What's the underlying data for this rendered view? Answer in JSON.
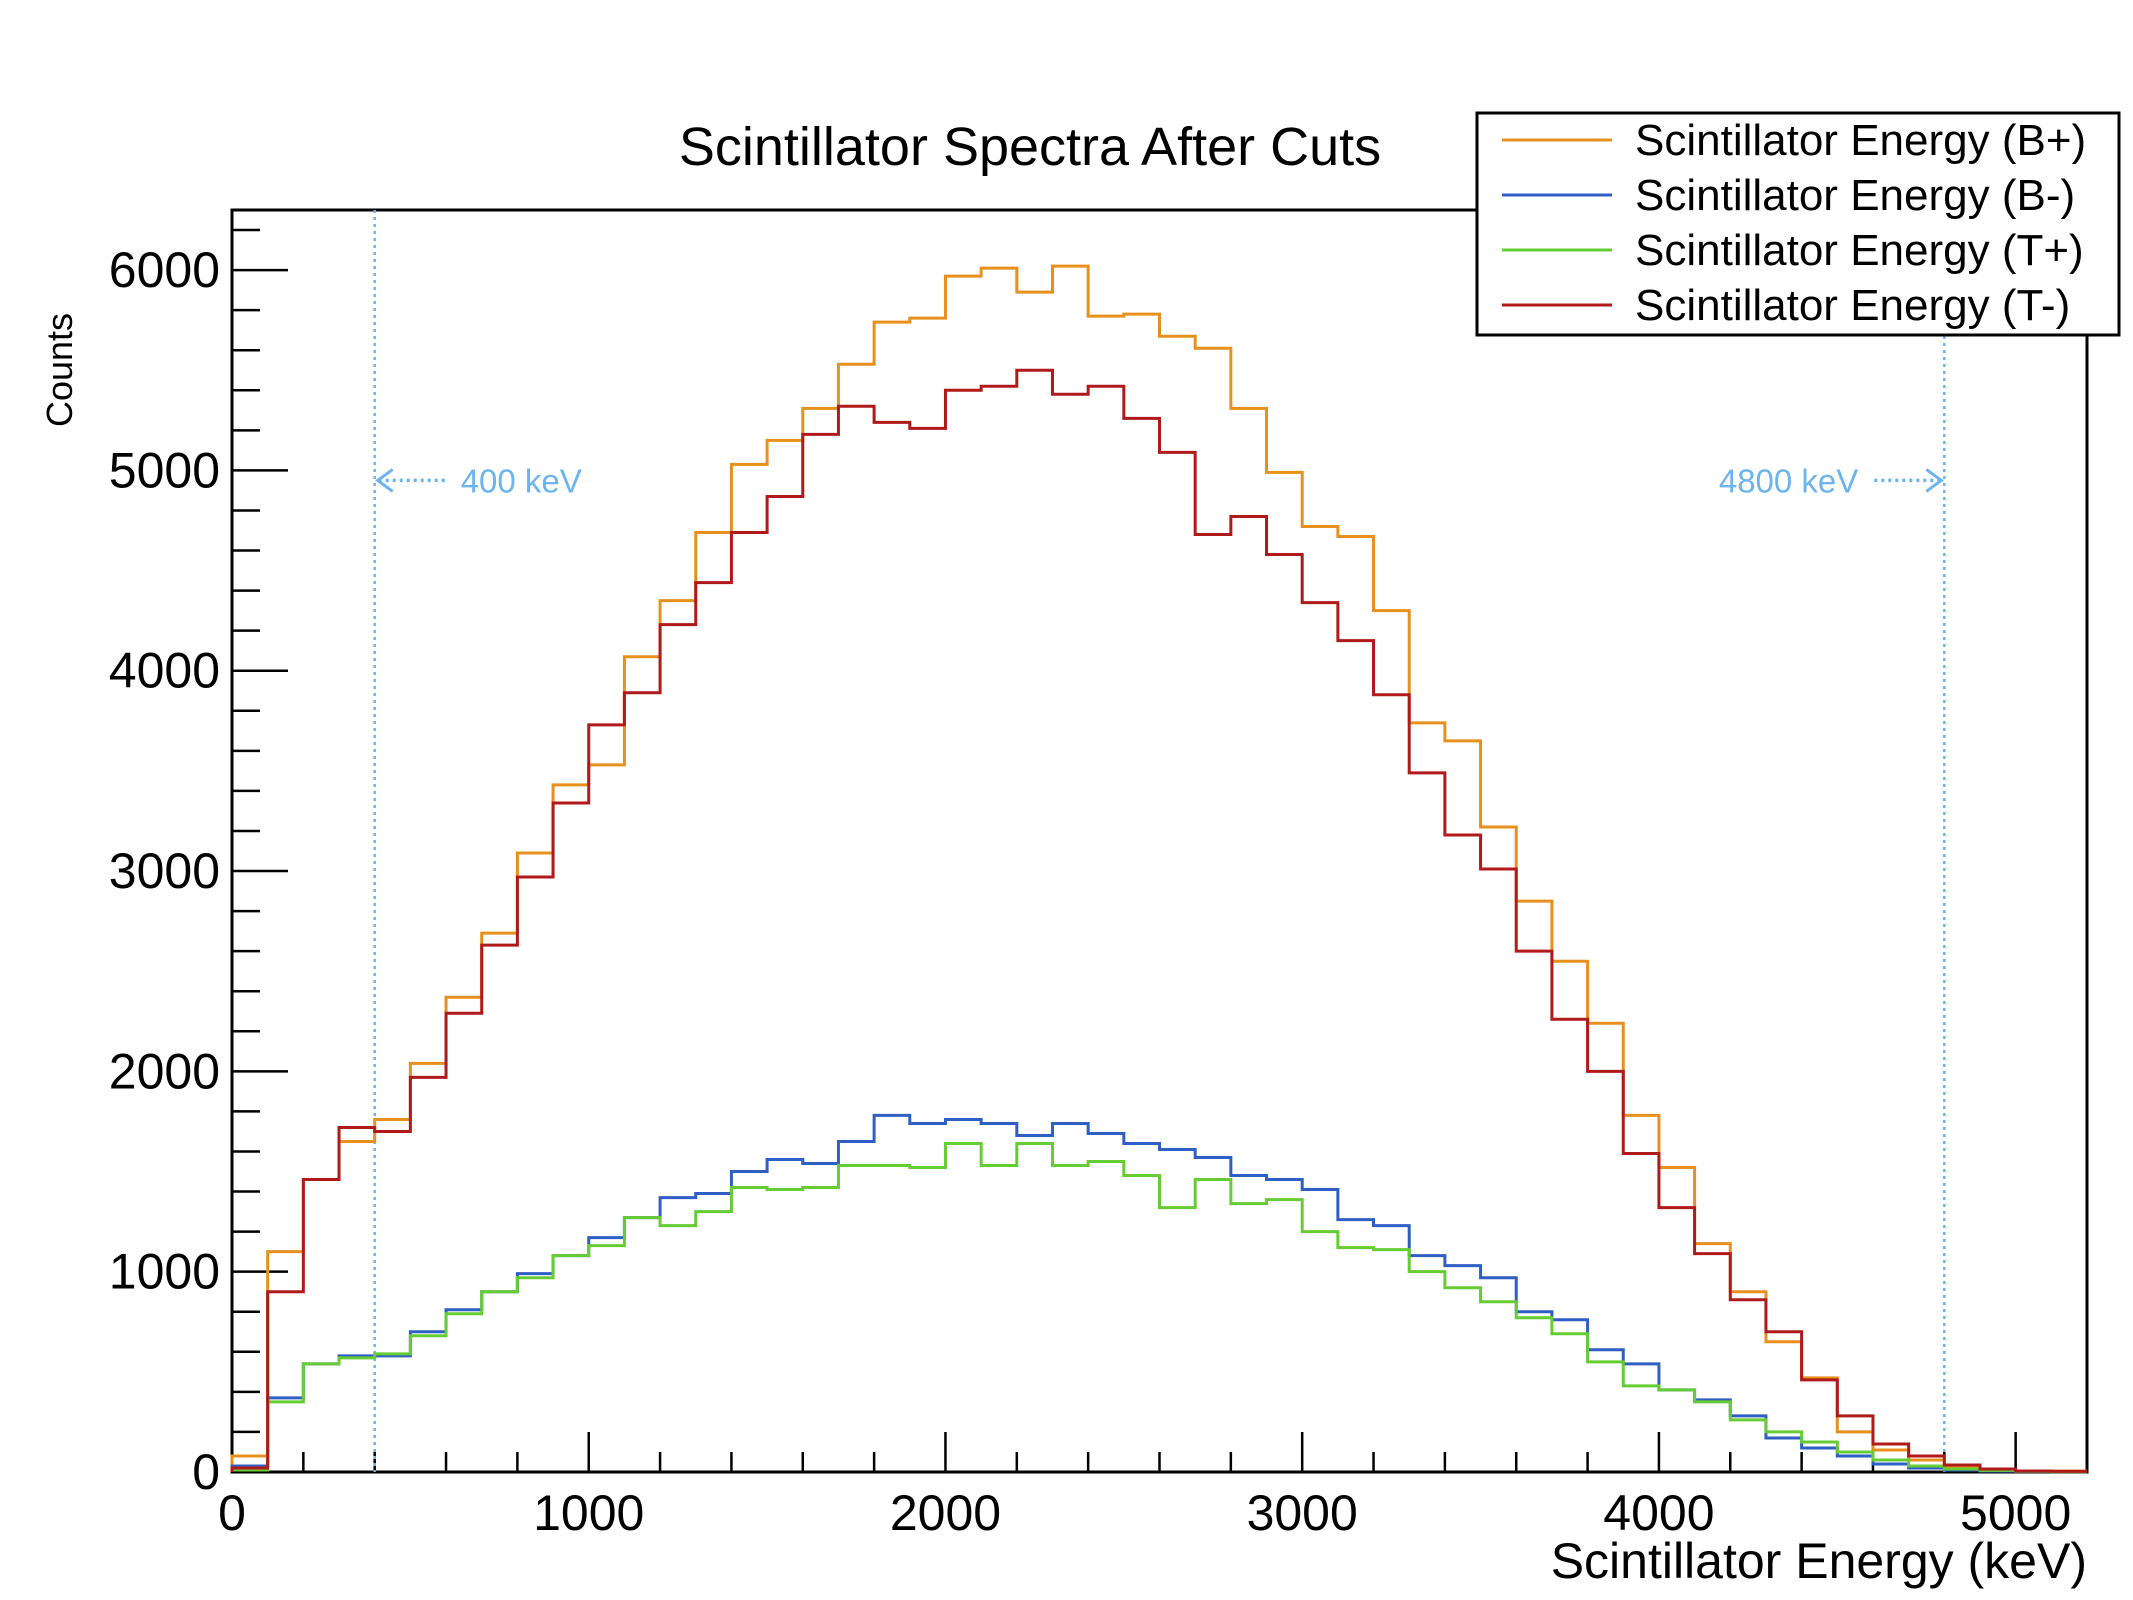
{
  "chart_data": {
    "type": "line",
    "title": "Scintillator Spectra After Cuts",
    "xlabel": "Scintillator Energy (keV)",
    "ylabel": "Counts",
    "xlim": [
      0,
      5200
    ],
    "ylim": [
      0,
      6300
    ],
    "x_ticks": [
      "0",
      "1000",
      "2000",
      "3000",
      "4000",
      "5000"
    ],
    "y_ticks": [
      "0",
      "1000",
      "2000",
      "3000",
      "4000",
      "5000",
      "6000"
    ],
    "grid": false,
    "legend_position": "top-right",
    "bin_width": 100,
    "series": [
      {
        "name": "Scintillator Energy (B+)",
        "color": "#e8901e",
        "values": [
          80,
          1100,
          1460,
          1650,
          1760,
          2040,
          2370,
          2690,
          3090,
          3430,
          3530,
          4070,
          4350,
          4690,
          5030,
          5150,
          5310,
          5530,
          5740,
          5760,
          5970,
          6010,
          5890,
          6020,
          5770,
          5780,
          5670,
          5610,
          5310,
          4990,
          4720,
          4670,
          4300,
          3740,
          3650,
          3220,
          2850,
          2550,
          2240,
          1780,
          1520,
          1140,
          900,
          650,
          470,
          200,
          110,
          60,
          20,
          10,
          5,
          5
        ]
      },
      {
        "name": "Scintillator Energy (B-)",
        "color": "#2f5fc4",
        "values": [
          30,
          370,
          540,
          580,
          580,
          700,
          810,
          900,
          990,
          1080,
          1170,
          1270,
          1370,
          1390,
          1500,
          1560,
          1540,
          1650,
          1780,
          1740,
          1760,
          1740,
          1680,
          1740,
          1690,
          1640,
          1610,
          1570,
          1480,
          1460,
          1410,
          1260,
          1230,
          1080,
          1030,
          970,
          800,
          760,
          610,
          540,
          410,
          360,
          280,
          170,
          120,
          80,
          40,
          20,
          10,
          5,
          3,
          2
        ]
      },
      {
        "name": "Scintillator Energy (T+)",
        "color": "#66cc33",
        "values": [
          10,
          350,
          540,
          570,
          590,
          680,
          790,
          900,
          970,
          1080,
          1130,
          1270,
          1230,
          1300,
          1420,
          1410,
          1420,
          1530,
          1530,
          1520,
          1640,
          1530,
          1640,
          1530,
          1550,
          1480,
          1320,
          1460,
          1340,
          1360,
          1200,
          1120,
          1110,
          1000,
          920,
          850,
          770,
          690,
          550,
          430,
          410,
          350,
          260,
          200,
          150,
          100,
          60,
          30,
          15,
          8,
          4,
          2
        ]
      },
      {
        "name": "Scintillator Energy (T-)",
        "color": "#b01a1a",
        "values": [
          20,
          900,
          1460,
          1720,
          1700,
          1970,
          2290,
          2630,
          2970,
          3340,
          3730,
          3890,
          4230,
          4440,
          4690,
          4870,
          5180,
          5320,
          5240,
          5210,
          5400,
          5420,
          5500,
          5380,
          5420,
          5260,
          5090,
          4680,
          4770,
          4580,
          4340,
          4150,
          3880,
          3490,
          3180,
          3010,
          2600,
          2260,
          2000,
          1590,
          1320,
          1090,
          860,
          700,
          460,
          280,
          140,
          80,
          35,
          15,
          5,
          3
        ]
      }
    ],
    "annotations": [
      {
        "text": "400 keV",
        "x": 400,
        "y": 4950,
        "direction": "left",
        "color": "#6cb4f0"
      },
      {
        "text": "4800 keV",
        "x": 4800,
        "y": 4950,
        "direction": "right",
        "color": "#6cb4f0"
      }
    ]
  }
}
